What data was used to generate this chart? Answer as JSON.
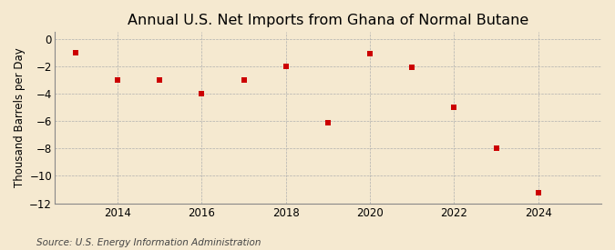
{
  "title": "Annual U.S. Net Imports from Ghana of Normal Butane",
  "ylabel": "Thousand Barrels per Day",
  "source": "Source: U.S. Energy Information Administration",
  "background_color": "#f5e9d0",
  "plot_bg_color": "#f5e9d0",
  "years": [
    2013,
    2014,
    2015,
    2016,
    2017,
    2018,
    2019,
    2020,
    2021,
    2022,
    2023,
    2024
  ],
  "values": [
    -1.0,
    -3.0,
    -3.0,
    -4.0,
    -3.0,
    -2.0,
    -6.1,
    -1.1,
    -2.1,
    -5.0,
    -8.0,
    -11.2
  ],
  "marker_color": "#cc0000",
  "marker_style": "s",
  "marker_size": 4,
  "xlim": [
    2012.5,
    2025.5
  ],
  "ylim": [
    -12,
    0.5
  ],
  "yticks": [
    0,
    -2,
    -4,
    -6,
    -8,
    -10,
    -12
  ],
  "xticks": [
    2014,
    2016,
    2018,
    2020,
    2022,
    2024
  ],
  "title_fontsize": 11.5,
  "label_fontsize": 8.5,
  "tick_fontsize": 8.5,
  "source_fontsize": 7.5
}
